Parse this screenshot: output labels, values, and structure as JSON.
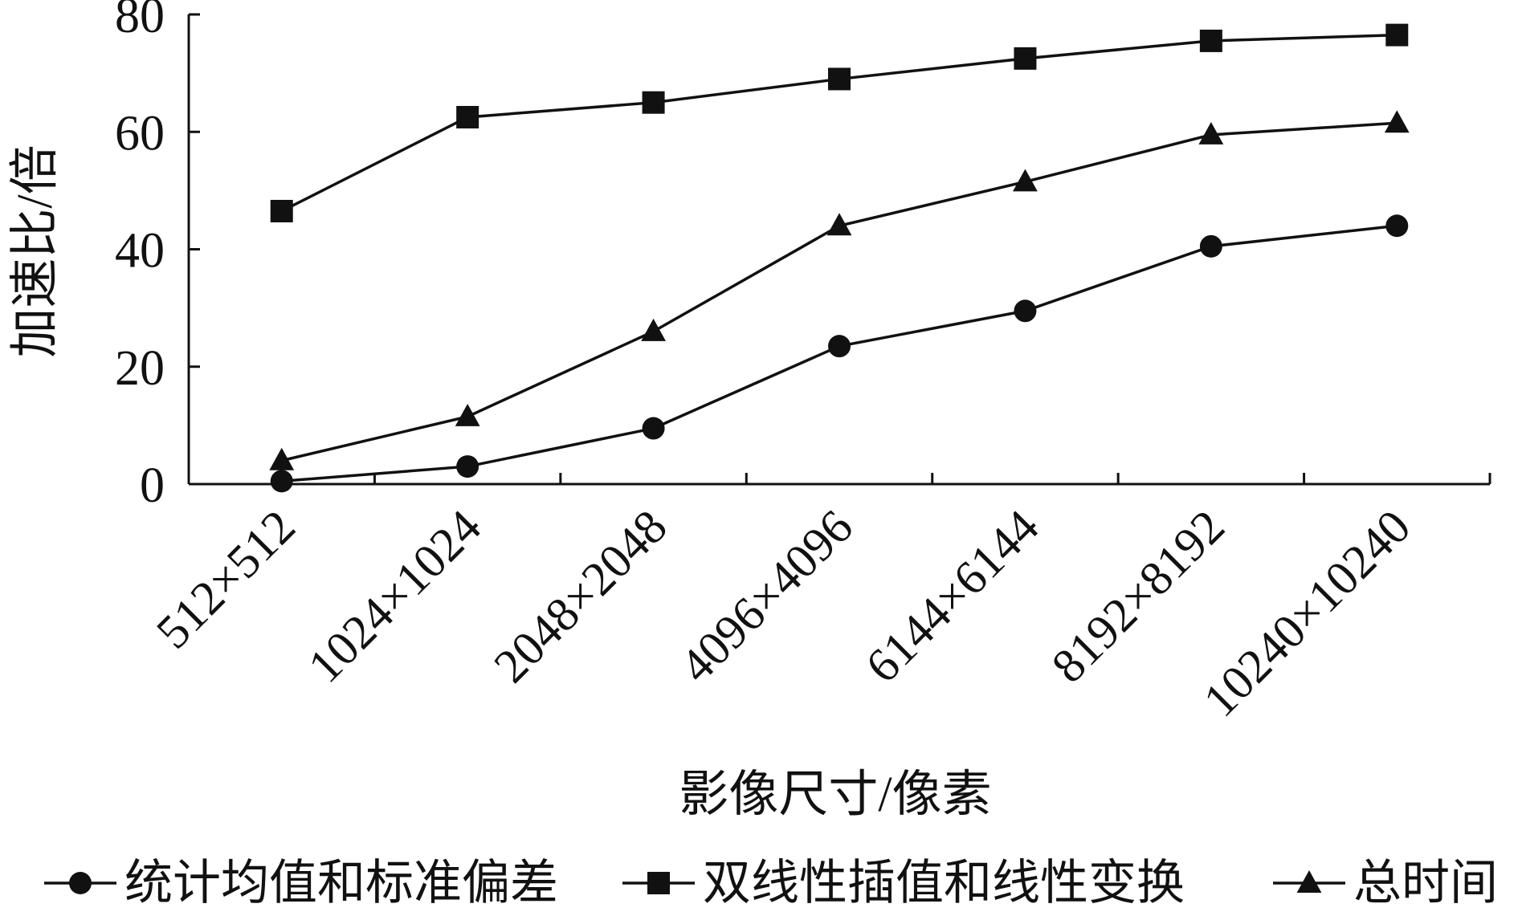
{
  "chart_data": {
    "type": "line",
    "title": "",
    "xlabel": "影像尺寸/像素",
    "ylabel": "加速比/倍",
    "categories": [
      "512×512",
      "1024×1024",
      "2048×2048",
      "4096×4096",
      "6144×6144",
      "8192×8192",
      "10240×10240"
    ],
    "ylim": [
      0,
      80
    ],
    "yticks": [
      "0",
      "20",
      "40",
      "60",
      "80"
    ],
    "grid": false,
    "legend_position": "bottom",
    "series": [
      {
        "name": "统计均值和标准偏差",
        "marker": "circle",
        "values": [
          0.5,
          3,
          9.5,
          23.5,
          29.5,
          40.5,
          44
        ]
      },
      {
        "name": "双线性插值和线性变换",
        "marker": "square",
        "values": [
          46.5,
          62.5,
          65,
          69,
          72.5,
          75.5,
          76.5
        ]
      },
      {
        "name": "总时间",
        "marker": "triangle",
        "values": [
          4,
          11.5,
          26,
          44,
          51.5,
          59.5,
          61.5
        ]
      }
    ],
    "line_color": "#111111"
  }
}
